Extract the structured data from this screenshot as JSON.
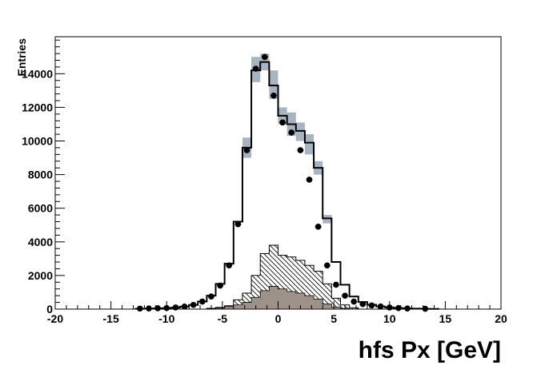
{
  "chart_data": {
    "type": "histogram",
    "xlabel": "hfs Px [GeV]",
    "ylabel": "Entries",
    "xlim": [
      -20,
      20
    ],
    "ylim": [
      0,
      16200
    ],
    "xticks": [
      -20,
      -15,
      -10,
      -5,
      0,
      5,
      10,
      15,
      20
    ],
    "yticks": [
      0,
      2000,
      4000,
      6000,
      8000,
      10000,
      12000,
      14000
    ],
    "bin_width": 0.8,
    "colors": {
      "mc_line": "#000000",
      "band": "#a8b4c0",
      "filled_component": "#9e9189",
      "data_marker": "#000000"
    },
    "series": [
      {
        "kind": "mc_total_step",
        "x": [
          -12.8,
          -12.0,
          -11.2,
          -10.4,
          -9.6,
          -8.8,
          -8.0,
          -7.2,
          -6.4,
          -5.6,
          -4.8,
          -4.0,
          -3.2,
          -2.4,
          -1.6,
          -0.8,
          0.0,
          0.8,
          1.6,
          2.4,
          3.2,
          4.0,
          4.8,
          5.6,
          6.4,
          7.2,
          8.0,
          8.8,
          9.6,
          10.4,
          11.2,
          12.0,
          12.8,
          13.6
        ],
        "values": [
          20,
          30,
          40,
          60,
          90,
          150,
          250,
          450,
          800,
          1500,
          2700,
          5200,
          9600,
          14200,
          14700,
          13300,
          11500,
          11000,
          10600,
          9900,
          8400,
          5400,
          2800,
          1450,
          750,
          420,
          260,
          160,
          100,
          65,
          40,
          30,
          20,
          10
        ]
      },
      {
        "kind": "systematic_band",
        "x": [
          -3.2,
          -2.4,
          -1.6,
          -0.8,
          0.0,
          0.8,
          1.6,
          2.4,
          3.2,
          4.0
        ],
        "low": [
          9000,
          13500,
          14200,
          12500,
          11000,
          10300,
          10000,
          9200,
          8000,
          5100
        ],
        "high": [
          10200,
          15000,
          15200,
          14200,
          12000,
          11700,
          11100,
          10400,
          8800,
          5600
        ]
      },
      {
        "kind": "hatched_component",
        "x": [
          -6.4,
          -5.6,
          -4.8,
          -4.0,
          -3.2,
          -2.4,
          -1.6,
          -0.8,
          0.0,
          0.8,
          1.6,
          2.4,
          3.2,
          4.0,
          4.8,
          5.6,
          6.4
        ],
        "values": [
          50,
          100,
          200,
          550,
          950,
          2000,
          3300,
          3800,
          3200,
          3100,
          2900,
          2600,
          2250,
          1500,
          650,
          250,
          80
        ]
      },
      {
        "kind": "filled_component",
        "x": [
          -5.6,
          -4.8,
          -4.0,
          -3.2,
          -2.4,
          -1.6,
          -0.8,
          0.0,
          0.8,
          1.6,
          2.4,
          3.2,
          4.0,
          4.8,
          5.6
        ],
        "values": [
          60,
          150,
          250,
          400,
          700,
          1100,
          1350,
          1200,
          1050,
          950,
          800,
          600,
          300,
          120,
          40
        ]
      },
      {
        "kind": "data_points",
        "x": [
          -12.4,
          -11.6,
          -10.8,
          -10.0,
          -9.2,
          -8.4,
          -7.6,
          -6.8,
          -6.0,
          -5.2,
          -4.4,
          -3.6,
          -2.8,
          -2.0,
          -1.2,
          -0.4,
          0.4,
          1.2,
          2.0,
          2.8,
          3.6,
          4.4,
          5.2,
          6.0,
          6.8,
          7.6,
          8.4,
          9.2,
          10.0,
          10.8,
          11.6,
          13.2
        ],
        "values": [
          30,
          40,
          50,
          60,
          100,
          150,
          250,
          450,
          750,
          1400,
          2600,
          5050,
          9450,
          14300,
          15000,
          12700,
          11100,
          10500,
          9450,
          7700,
          4900,
          2600,
          1450,
          800,
          450,
          300,
          220,
          160,
          100,
          60,
          40,
          20
        ]
      }
    ]
  }
}
